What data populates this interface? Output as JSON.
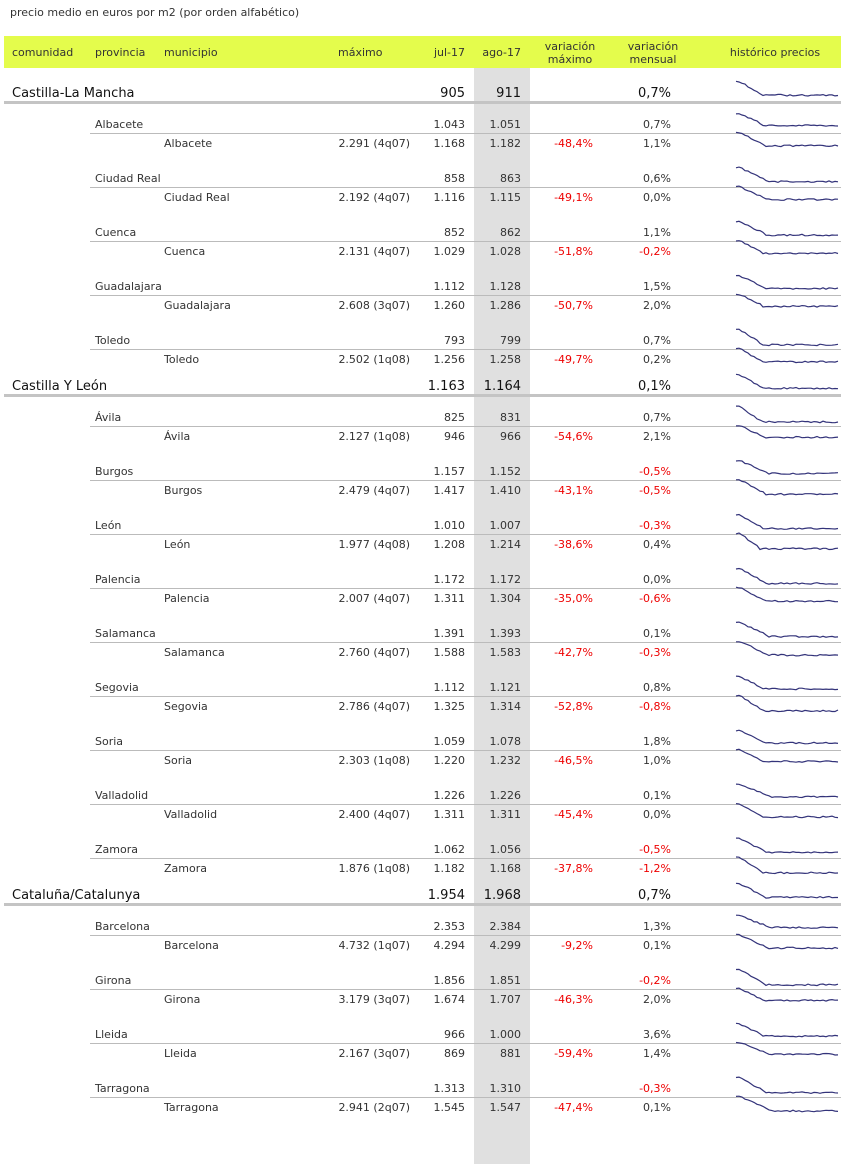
{
  "title": "precio medio en euros por m2 (por orden alfabético)",
  "header": {
    "comunidad": "comunidad",
    "provincia": "provincia",
    "municipio": "municipio",
    "maximo": "máximo",
    "jul": "jul-17",
    "ago": "ago-17",
    "var_max": "variación máximo",
    "var_mes": "variación mensual",
    "historico": "histórico precios"
  },
  "colors": {
    "header_bg": "#e4fc4c",
    "negative": "#ee0000",
    "sparkline": "#33337a"
  },
  "comunidades": [
    {
      "name": "Castilla-La Mancha",
      "jul": "905",
      "ago": "911",
      "var_mes": "0,7%",
      "provincias": [
        {
          "name": "Albacete",
          "jul": "1.043",
          "ago": "1.051",
          "var_mes": "0,7%",
          "mun": {
            "name": "Albacete",
            "max": "2.291 (4q07)",
            "jul": "1.168",
            "ago": "1.182",
            "var_max": "-48,4%",
            "var_mes": "1,1%"
          }
        },
        {
          "name": "Ciudad Real",
          "jul": "858",
          "ago": "863",
          "var_mes": "0,6%",
          "mun": {
            "name": "Ciudad Real",
            "max": "2.192 (4q07)",
            "jul": "1.116",
            "ago": "1.115",
            "var_max": "-49,1%",
            "var_mes": "0,0%"
          }
        },
        {
          "name": "Cuenca",
          "jul": "852",
          "ago": "862",
          "var_mes": "1,1%",
          "mun": {
            "name": "Cuenca",
            "max": "2.131 (4q07)",
            "jul": "1.029",
            "ago": "1.028",
            "var_max": "-51,8%",
            "var_mes": "-0,2%"
          }
        },
        {
          "name": "Guadalajara",
          "jul": "1.112",
          "ago": "1.128",
          "var_mes": "1,5%",
          "mun": {
            "name": "Guadalajara",
            "max": "2.608 (3q07)",
            "jul": "1.260",
            "ago": "1.286",
            "var_max": "-50,7%",
            "var_mes": "2,0%"
          }
        },
        {
          "name": "Toledo",
          "jul": "793",
          "ago": "799",
          "var_mes": "0,7%",
          "mun": {
            "name": "Toledo",
            "max": "2.502 (1q08)",
            "jul": "1.256",
            "ago": "1.258",
            "var_max": "-49,7%",
            "var_mes": "0,2%"
          }
        }
      ]
    },
    {
      "name": "Castilla Y León",
      "jul": "1.163",
      "ago": "1.164",
      "var_mes": "0,1%",
      "provincias": [
        {
          "name": "Ávila",
          "jul": "825",
          "ago": "831",
          "var_mes": "0,7%",
          "mun": {
            "name": "Ávila",
            "max": "2.127 (1q08)",
            "jul": "946",
            "ago": "966",
            "var_max": "-54,6%",
            "var_mes": "2,1%"
          }
        },
        {
          "name": "Burgos",
          "jul": "1.157",
          "ago": "1.152",
          "var_mes": "-0,5%",
          "mun": {
            "name": "Burgos",
            "max": "2.479 (4q07)",
            "jul": "1.417",
            "ago": "1.410",
            "var_max": "-43,1%",
            "var_mes": "-0,5%"
          }
        },
        {
          "name": "León",
          "jul": "1.010",
          "ago": "1.007",
          "var_mes": "-0,3%",
          "mun": {
            "name": "León",
            "max": "1.977 (4q08)",
            "jul": "1.208",
            "ago": "1.214",
            "var_max": "-38,6%",
            "var_mes": "0,4%"
          }
        },
        {
          "name": "Palencia",
          "jul": "1.172",
          "ago": "1.172",
          "var_mes": "0,0%",
          "mun": {
            "name": "Palencia",
            "max": "2.007 (4q07)",
            "jul": "1.311",
            "ago": "1.304",
            "var_max": "-35,0%",
            "var_mes": "-0,6%"
          }
        },
        {
          "name": "Salamanca",
          "jul": "1.391",
          "ago": "1.393",
          "var_mes": "0,1%",
          "mun": {
            "name": "Salamanca",
            "max": "2.760 (4q07)",
            "jul": "1.588",
            "ago": "1.583",
            "var_max": "-42,7%",
            "var_mes": "-0,3%"
          }
        },
        {
          "name": "Segovia",
          "jul": "1.112",
          "ago": "1.121",
          "var_mes": "0,8%",
          "mun": {
            "name": "Segovia",
            "max": "2.786 (4q07)",
            "jul": "1.325",
            "ago": "1.314",
            "var_max": "-52,8%",
            "var_mes": "-0,8%"
          }
        },
        {
          "name": "Soria",
          "jul": "1.059",
          "ago": "1.078",
          "var_mes": "1,8%",
          "mun": {
            "name": "Soria",
            "max": "2.303 (1q08)",
            "jul": "1.220",
            "ago": "1.232",
            "var_max": "-46,5%",
            "var_mes": "1,0%"
          }
        },
        {
          "name": "Valladolid",
          "jul": "1.226",
          "ago": "1.226",
          "var_mes": "0,1%",
          "mun": {
            "name": "Valladolid",
            "max": "2.400 (4q07)",
            "jul": "1.311",
            "ago": "1.311",
            "var_max": "-45,4%",
            "var_mes": "0,0%"
          }
        },
        {
          "name": "Zamora",
          "jul": "1.062",
          "ago": "1.056",
          "var_mes": "-0,5%",
          "mun": {
            "name": "Zamora",
            "max": "1.876 (1q08)",
            "jul": "1.182",
            "ago": "1.168",
            "var_max": "-37,8%",
            "var_mes": "-1,2%"
          }
        }
      ]
    },
    {
      "name": "Cataluña/Catalunya",
      "jul": "1.954",
      "ago": "1.968",
      "var_mes": "0,7%",
      "provincias": [
        {
          "name": "Barcelona",
          "jul": "2.353",
          "ago": "2.384",
          "var_mes": "1,3%",
          "mun": {
            "name": "Barcelona",
            "max": "4.732 (1q07)",
            "jul": "4.294",
            "ago": "4.299",
            "var_max": "-9,2%",
            "var_mes": "0,1%"
          }
        },
        {
          "name": "Girona",
          "jul": "1.856",
          "ago": "1.851",
          "var_mes": "-0,2%",
          "mun": {
            "name": "Girona",
            "max": "3.179 (3q07)",
            "jul": "1.674",
            "ago": "1.707",
            "var_max": "-46,3%",
            "var_mes": "2,0%"
          }
        },
        {
          "name": "Lleida",
          "jul": "966",
          "ago": "1.000",
          "var_mes": "3,6%",
          "mun": {
            "name": "Lleida",
            "max": "2.167 (3q07)",
            "jul": "869",
            "ago": "881",
            "var_max": "-59,4%",
            "var_mes": "1,4%"
          }
        },
        {
          "name": "Tarragona",
          "jul": "1.313",
          "ago": "1.310",
          "var_mes": "-0,3%",
          "mun": {
            "name": "Tarragona",
            "max": "2.941 (2q07)",
            "jul": "1.545",
            "ago": "1.547",
            "var_max": "-47,4%",
            "var_mes": "0,1%"
          }
        }
      ]
    }
  ]
}
